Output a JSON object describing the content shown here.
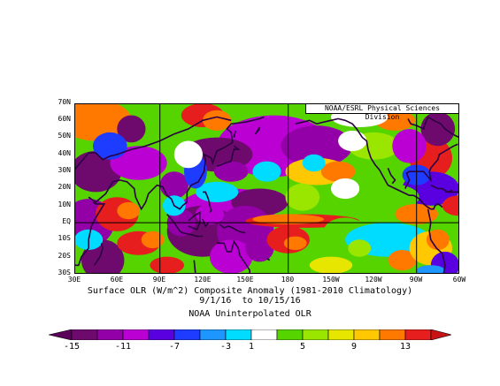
{
  "map": {
    "credit": "NOAA/ESRL Physical Sciences Division",
    "lat_labels": [
      "70N",
      "60N",
      "50N",
      "40N",
      "30N",
      "20N",
      "10N",
      "EQ",
      "10S",
      "20S",
      "30S"
    ],
    "lon_labels": [
      "30E",
      "60E",
      "90E",
      "120E",
      "150E",
      "180",
      "150W",
      "120W",
      "90W",
      "60W"
    ],
    "title": "Surface OLR (W/m^2) Composite Anomaly (1981-2010 Climatology)",
    "dates": "9/1/16  to 10/15/16",
    "dataset": "NOAA Uninterpolated OLR",
    "extent": {
      "lon_min": 30,
      "lon_max": 300,
      "lat_min": -30,
      "lat_max": 70
    },
    "grid_lines": {
      "lon": [
        90,
        180,
        270
      ],
      "lat": [
        0
      ]
    }
  },
  "colorbar": {
    "labels": [
      "-15",
      "-11",
      "-7",
      "-3",
      "1",
      "5",
      "9",
      "13"
    ],
    "colors": [
      "#6e0a6e",
      "#9400a8",
      "#bb00d4",
      "#5a00e0",
      "#1e3cff",
      "#1e96ff",
      "#00dcff",
      "#ffffff",
      "#55d400",
      "#9be600",
      "#e6e600",
      "#ffc800",
      "#ff7800",
      "#e61e1e"
    ],
    "min_color": "#5a005a",
    "max_color": "#c81414",
    "label_positions": [
      0,
      2,
      4,
      6,
      7,
      9,
      11,
      13
    ]
  }
}
